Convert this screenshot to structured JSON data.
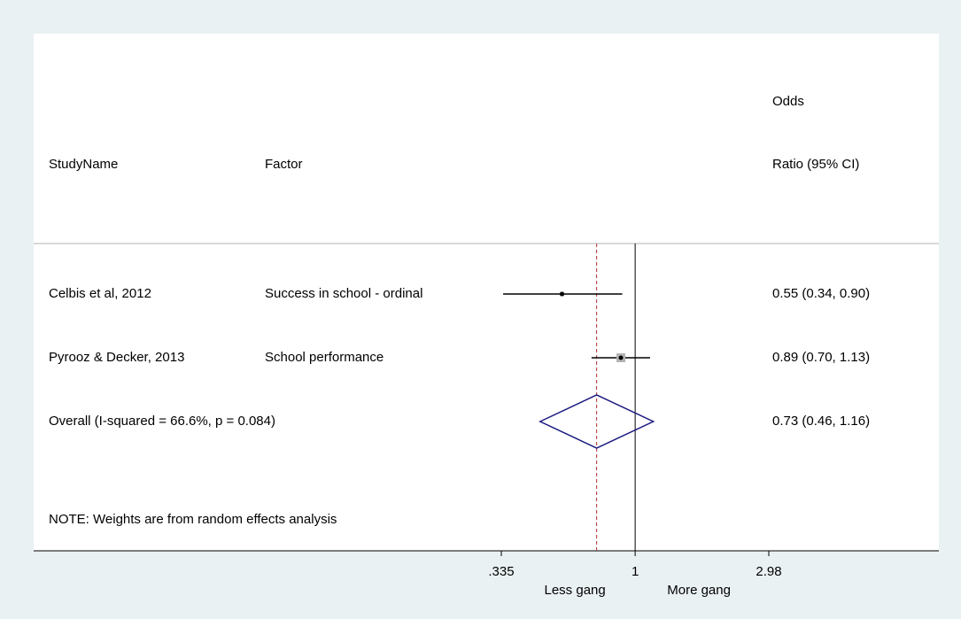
{
  "chart_data": {
    "type": "forest",
    "columns": {
      "study": "StudyName",
      "factor": "Factor",
      "ratio": [
        "Odds",
        "Ratio (95% CI)"
      ]
    },
    "studies": [
      {
        "name": "Celbis et al, 2012",
        "factor": "Success in school - ordinal",
        "value": 0.55,
        "lower": 0.34,
        "upper": 0.9,
        "value_label": "0.55 (0.34, 0.90)"
      },
      {
        "name": "Pyrooz & Decker, 2013",
        "factor": "School performance",
        "value": 0.89,
        "lower": 0.7,
        "upper": 1.13,
        "value_label": "0.89 (0.70, 1.13)"
      }
    ],
    "overall": {
      "name": "Overall  (I-squared = 66.6%, p = 0.084)",
      "value": 0.73,
      "lower": 0.46,
      "upper": 1.16,
      "value_label": "0.73 (0.46, 1.16)"
    },
    "note": "NOTE: Weights are from random effects analysis",
    "null_line": 1,
    "xlim": [
      0.335,
      2.98
    ],
    "xticks": [
      {
        "value": 0.335,
        "label": ".335"
      },
      1,
      2.98
    ],
    "log_x": true,
    "x_labels": [
      "Less gang",
      "More gang"
    ],
    "colors": {
      "box": "#b3b3b3",
      "ci": "#000000",
      "diamond": "#1a1a80",
      "overall_line": "#b03030"
    }
  }
}
